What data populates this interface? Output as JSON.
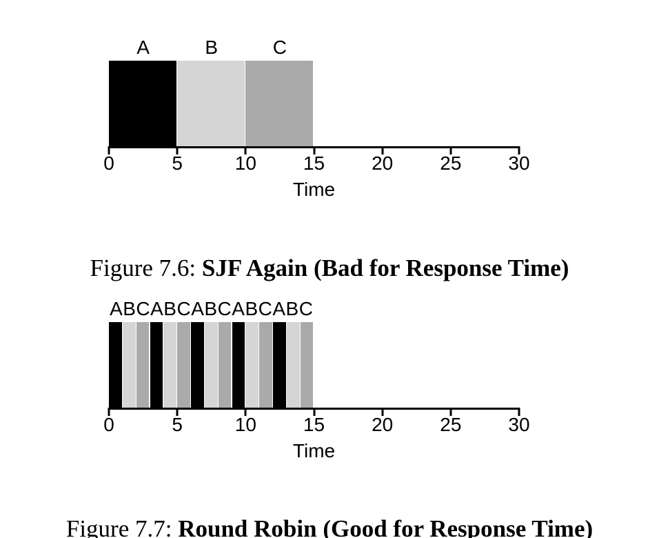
{
  "colors": {
    "A": "#000000",
    "B": "#d5d5d5",
    "C": "#aaaaaa"
  },
  "figures": [
    {
      "caption_prefix": "Figure 7.6:",
      "caption_title": "SJF Again (Bad for Response Time)"
    },
    {
      "caption_prefix": "Figure 7.7:",
      "caption_title": "Round Robin (Good for Response Time)"
    }
  ],
  "chart_data": [
    {
      "type": "bar",
      "variant": "schedule-timeline",
      "xlabel": "Time",
      "axis": {
        "min": 0,
        "max": 30,
        "ticks": [
          0,
          5,
          10,
          15,
          20,
          25,
          30
        ]
      },
      "label_mode": "per-segment",
      "segments": [
        {
          "job": "A",
          "start": 0,
          "end": 5
        },
        {
          "job": "B",
          "start": 5,
          "end": 10
        },
        {
          "job": "C",
          "start": 10,
          "end": 15
        }
      ]
    },
    {
      "type": "bar",
      "variant": "schedule-timeline",
      "xlabel": "Time",
      "axis": {
        "min": 0,
        "max": 30,
        "ticks": [
          0,
          5,
          10,
          15,
          20,
          25,
          30
        ]
      },
      "label_mode": "combined",
      "bars_label": "ABCABCABCABCABC",
      "segments": [
        {
          "job": "A",
          "start": 0,
          "end": 1
        },
        {
          "job": "B",
          "start": 1,
          "end": 2
        },
        {
          "job": "C",
          "start": 2,
          "end": 3
        },
        {
          "job": "A",
          "start": 3,
          "end": 4
        },
        {
          "job": "B",
          "start": 4,
          "end": 5
        },
        {
          "job": "C",
          "start": 5,
          "end": 6
        },
        {
          "job": "A",
          "start": 6,
          "end": 7
        },
        {
          "job": "B",
          "start": 7,
          "end": 8
        },
        {
          "job": "C",
          "start": 8,
          "end": 9
        },
        {
          "job": "A",
          "start": 9,
          "end": 10
        },
        {
          "job": "B",
          "start": 10,
          "end": 11
        },
        {
          "job": "C",
          "start": 11,
          "end": 12
        },
        {
          "job": "A",
          "start": 12,
          "end": 13
        },
        {
          "job": "B",
          "start": 13,
          "end": 14
        },
        {
          "job": "C",
          "start": 14,
          "end": 15
        }
      ]
    }
  ]
}
